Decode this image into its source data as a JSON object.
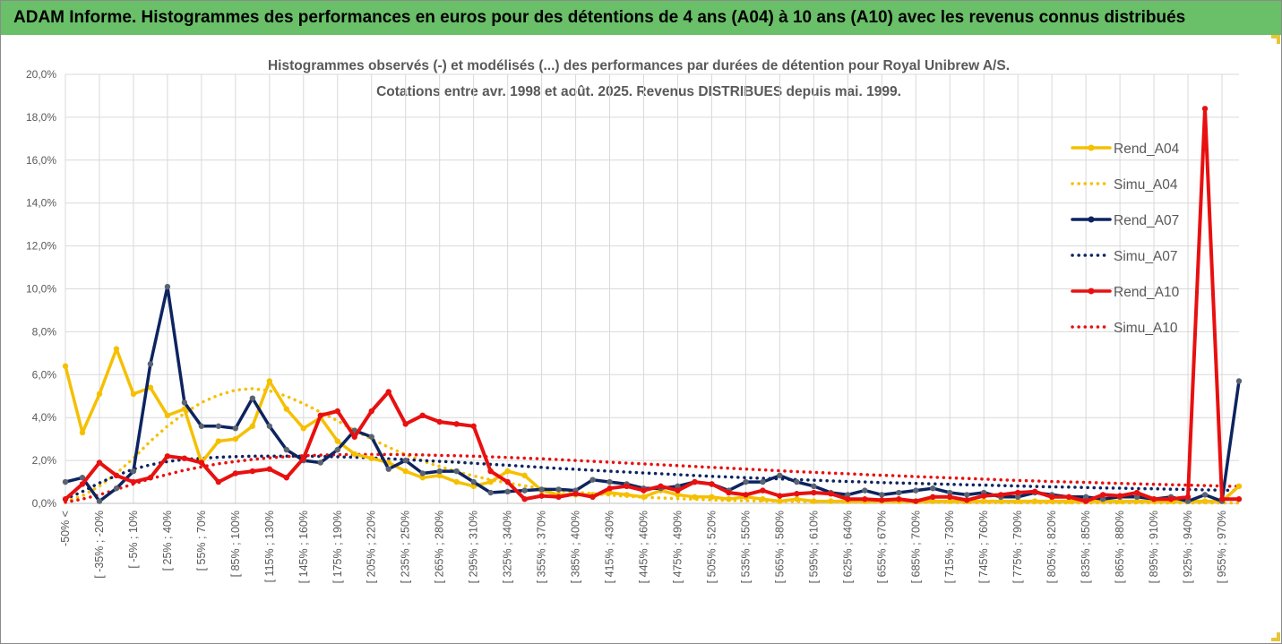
{
  "banner": {
    "title": "ADAM Informe. Histogrammes des performances en euros pour des détentions de 4 ans (A04) à 10 ans (A10) avec les revenus connus distribués"
  },
  "colors": {
    "banner_bg": "#6abf69",
    "A04": "#f5c000",
    "A07": "#0d2460",
    "A10": "#e81010",
    "grid": "#d9d9d9"
  },
  "chart_data": {
    "type": "line",
    "title": "Histogrammes observés (-) et modélisés (...) des performances par durées de détention pour Royal Unibrew A/S.",
    "subtitle": "Cotations entre avr. 1998 et août. 2025. Revenus DISTRIBUES depuis mai. 1999.",
    "ylim": [
      0,
      20
    ],
    "y_ticks": [
      "0,0%",
      "2,0%",
      "4,0%",
      "6,0%",
      "8,0%",
      "10,0%",
      "12,0%",
      "14,0%",
      "16,0%",
      "18,0%",
      "20,0%"
    ],
    "x_tick_labels": [
      "-50% <",
      "[ -35% ; -20%",
      "[ -5% ; 10%",
      "[ 25% ; 40%",
      "[ 55% ; 70%",
      "[ 85% ; 100%",
      "[ 115% ; 130%",
      "[ 145% ; 160%",
      "[ 175% ; 190%",
      "[ 205% ; 220%",
      "[ 235% ; 250%",
      "[ 265% ; 280%",
      "[ 295% ; 310%",
      "[ 325% ; 340%",
      "[ 355% ; 370%",
      "[ 385% ; 400%",
      "[ 415% ; 430%",
      "[ 445% ; 460%",
      "[ 475% ; 490%",
      "[ 505% ; 520%",
      "[ 535% ; 550%",
      "[ 565% ; 580%",
      "[ 595% ; 610%",
      "[ 625% ; 640%",
      "[ 655% ; 670%",
      "[ 685% ; 700%",
      "[ 715% ; 730%",
      "[ 745% ; 760%",
      "[ 775% ; 790%",
      "[ 805% ; 820%",
      "[ 835% ; 850%",
      "[ 865% ; 880%",
      "[ 895% ; 910%",
      "[ 925% ; 940%",
      "[ 955% ; 970%"
    ],
    "grid": true,
    "legend_position": "right",
    "series": [
      {
        "name": "Rend_A04",
        "style": "solid",
        "color": "#f5c000",
        "values": [
          6.4,
          3.3,
          5.1,
          7.2,
          5.1,
          5.4,
          4.1,
          4.4,
          1.9,
          2.9,
          3.0,
          3.6,
          5.7,
          4.4,
          3.5,
          4.0,
          2.9,
          2.3,
          2.1,
          1.9,
          1.5,
          1.2,
          1.3,
          1.0,
          0.8,
          1.0,
          1.5,
          1.3,
          0.6,
          0.4,
          0.4,
          0.4,
          0.5,
          0.4,
          0.3,
          0.6,
          0.4,
          0.3,
          0.3,
          0.2,
          0.3,
          0.2,
          0.1,
          0.2,
          0.1,
          0.1,
          0.1,
          0.1,
          0.1,
          0.1,
          0.1,
          0.1,
          0.1,
          0.1,
          0.1,
          0.1,
          0.1,
          0.1,
          0.1,
          0.1,
          0.1,
          0.1,
          0.1,
          0.1,
          0.1,
          0.1,
          0.1,
          0.1,
          0.1,
          0.8
        ]
      },
      {
        "name": "Simu_A04",
        "style": "dotted",
        "color": "#f5c000",
        "values": [
          0.1,
          0.35,
          0.8,
          1.4,
          2.1,
          2.9,
          3.6,
          4.2,
          4.7,
          5.05,
          5.28,
          5.35,
          5.25,
          5.0,
          4.65,
          4.25,
          3.85,
          3.4,
          3.0,
          2.62,
          2.28,
          1.98,
          1.72,
          1.48,
          1.28,
          1.1,
          0.95,
          0.82,
          0.7,
          0.6,
          0.52,
          0.45,
          0.39,
          0.33,
          0.29,
          0.25,
          0.22,
          0.19,
          0.16,
          0.14,
          0.12,
          0.11,
          0.1,
          0.09,
          0.08,
          0.07,
          0.06,
          0.06,
          0.05,
          0.05,
          0.04,
          0.04,
          0.04,
          0.03,
          0.03,
          0.03,
          0.03,
          0.02,
          0.02,
          0.02,
          0.02,
          0.02,
          0.02,
          0.02,
          0.02,
          0.02,
          0.02,
          0.02,
          0.02,
          0.02
        ]
      },
      {
        "name": "Rend_A07",
        "style": "solid",
        "color": "#0d2460",
        "values": [
          1.0,
          1.2,
          0.1,
          0.7,
          1.5,
          6.5,
          10.1,
          4.7,
          3.6,
          3.6,
          3.5,
          4.9,
          3.6,
          2.5,
          2.0,
          1.9,
          2.5,
          3.4,
          3.1,
          1.6,
          2.0,
          1.4,
          1.5,
          1.5,
          1.0,
          0.5,
          0.55,
          0.6,
          0.65,
          0.65,
          0.6,
          1.1,
          1.0,
          0.9,
          0.7,
          0.7,
          0.8,
          1.0,
          0.9,
          0.6,
          1.0,
          1.0,
          1.3,
          1.0,
          0.8,
          0.5,
          0.4,
          0.6,
          0.4,
          0.5,
          0.6,
          0.7,
          0.5,
          0.4,
          0.5,
          0.3,
          0.3,
          0.5,
          0.4,
          0.3,
          0.3,
          0.2,
          0.3,
          0.3,
          0.2,
          0.3,
          0.1,
          0.4,
          0.1,
          5.7
        ]
      },
      {
        "name": "Simu_A07",
        "style": "dotted",
        "color": "#0d2460",
        "values": [
          0.2,
          0.55,
          0.95,
          1.3,
          1.6,
          1.8,
          1.95,
          2.05,
          2.1,
          2.15,
          2.18,
          2.2,
          2.2,
          2.2,
          2.2,
          2.19,
          2.17,
          2.15,
          2.12,
          2.08,
          2.04,
          2.0,
          1.96,
          1.92,
          1.87,
          1.82,
          1.78,
          1.73,
          1.68,
          1.63,
          1.59,
          1.54,
          1.5,
          1.46,
          1.42,
          1.38,
          1.34,
          1.3,
          1.26,
          1.23,
          1.2,
          1.17,
          1.14,
          1.11,
          1.08,
          1.05,
          1.02,
          1.0,
          0.97,
          0.95,
          0.93,
          0.91,
          0.89,
          0.87,
          0.85,
          0.83,
          0.81,
          0.79,
          0.77,
          0.76,
          0.74,
          0.72,
          0.71,
          0.69,
          0.68,
          0.66,
          0.65,
          0.63,
          0.62,
          0.6
        ]
      },
      {
        "name": "Rend_A10",
        "style": "solid",
        "color": "#e81010",
        "values": [
          0.2,
          0.9,
          1.9,
          1.3,
          1.0,
          1.2,
          2.2,
          2.1,
          1.9,
          1.0,
          1.4,
          1.5,
          1.6,
          1.2,
          2.1,
          4.1,
          4.3,
          3.1,
          4.3,
          5.2,
          3.7,
          4.1,
          3.8,
          3.7,
          3.6,
          1.5,
          1.0,
          0.2,
          0.35,
          0.3,
          0.45,
          0.3,
          0.7,
          0.8,
          0.6,
          0.8,
          0.6,
          1.0,
          0.9,
          0.5,
          0.4,
          0.6,
          0.35,
          0.45,
          0.5,
          0.45,
          0.2,
          0.2,
          0.15,
          0.2,
          0.1,
          0.3,
          0.3,
          0.15,
          0.35,
          0.4,
          0.5,
          0.55,
          0.3,
          0.3,
          0.1,
          0.4,
          0.35,
          0.5,
          0.2,
          0.2,
          0.3,
          18.4,
          0.2,
          0.2
        ]
      },
      {
        "name": "Simu_A10",
        "style": "dotted",
        "color": "#e81010",
        "values": [
          0.05,
          0.2,
          0.4,
          0.65,
          0.9,
          1.15,
          1.35,
          1.55,
          1.7,
          1.85,
          1.95,
          2.05,
          2.12,
          2.18,
          2.22,
          2.25,
          2.27,
          2.28,
          2.28,
          2.28,
          2.27,
          2.26,
          2.24,
          2.22,
          2.2,
          2.17,
          2.14,
          2.11,
          2.08,
          2.04,
          2.0,
          1.96,
          1.92,
          1.88,
          1.84,
          1.8,
          1.76,
          1.72,
          1.68,
          1.64,
          1.6,
          1.56,
          1.52,
          1.48,
          1.45,
          1.41,
          1.38,
          1.34,
          1.31,
          1.28,
          1.25,
          1.22,
          1.19,
          1.16,
          1.13,
          1.1,
          1.07,
          1.05,
          1.02,
          1.0,
          0.98,
          0.95,
          0.93,
          0.91,
          0.89,
          0.87,
          0.85,
          0.83,
          0.81,
          0.79
        ]
      }
    ]
  }
}
